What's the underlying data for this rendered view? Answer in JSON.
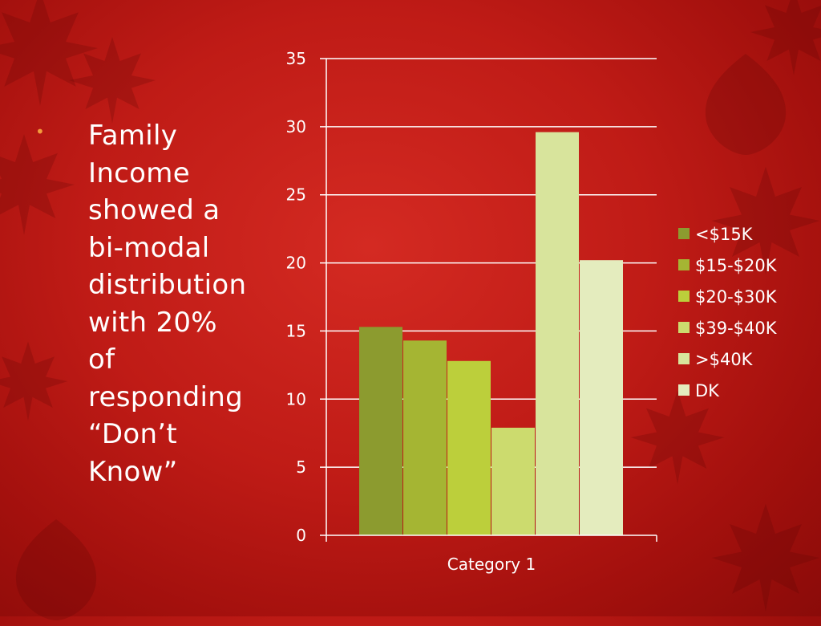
{
  "slide": {
    "bullet_lines": [
      "Family",
      "Income",
      "showed a",
      "bi-modal",
      "distribution",
      "with 20%",
      "of",
      "responding",
      "“Don’t",
      "Know”"
    ]
  },
  "colors": {
    "bullet": "#f39c3c",
    "gridline": "#ffffff",
    "text": "#ffffff"
  },
  "chart_data": {
    "type": "bar",
    "categories": [
      "Category 1"
    ],
    "series": [
      {
        "name": "<$15K",
        "values": [
          15.3
        ],
        "color": "#8c9b2f"
      },
      {
        "name": "$15-$20K",
        "values": [
          14.3
        ],
        "color": "#a5b533"
      },
      {
        "name": "$20-$30K",
        "values": [
          12.8
        ],
        "color": "#bccf3b"
      },
      {
        "name": "$39-$40K",
        "values": [
          7.9
        ],
        "color": "#ccdb6e"
      },
      {
        "name": ">$40K",
        "values": [
          29.6
        ],
        "color": "#d8e49c"
      },
      {
        "name": "DK",
        "values": [
          20.2
        ],
        "color": "#e4ecbe"
      }
    ],
    "ylim": [
      0,
      35
    ],
    "yticks": [
      0,
      5,
      10,
      15,
      20,
      25,
      30,
      35
    ],
    "grid": true,
    "legend": "right",
    "xlabel": "",
    "ylabel": ""
  }
}
